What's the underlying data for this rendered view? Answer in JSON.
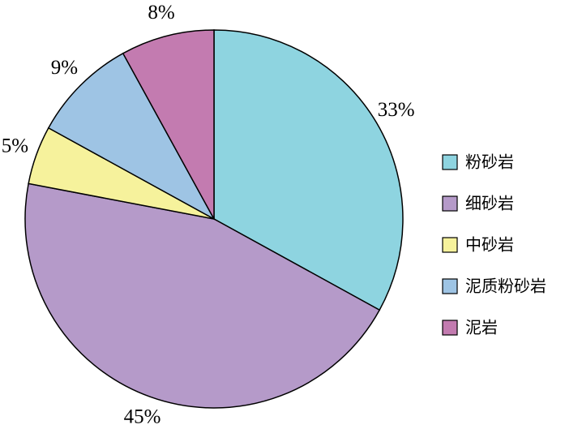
{
  "chart_data": {
    "type": "pie",
    "categories": [
      "粉砂岩",
      "细砂岩",
      "中砂岩",
      "泥质粉砂岩",
      "泥岩"
    ],
    "values": [
      33,
      45,
      5,
      9,
      8
    ],
    "value_labels": [
      "33%",
      "45%",
      "5%",
      "9%",
      "8%"
    ],
    "colors": [
      "#8ed4e0",
      "#b59ac9",
      "#f6f29c",
      "#9ec4e4",
      "#c37bb0"
    ],
    "legend": "right"
  }
}
